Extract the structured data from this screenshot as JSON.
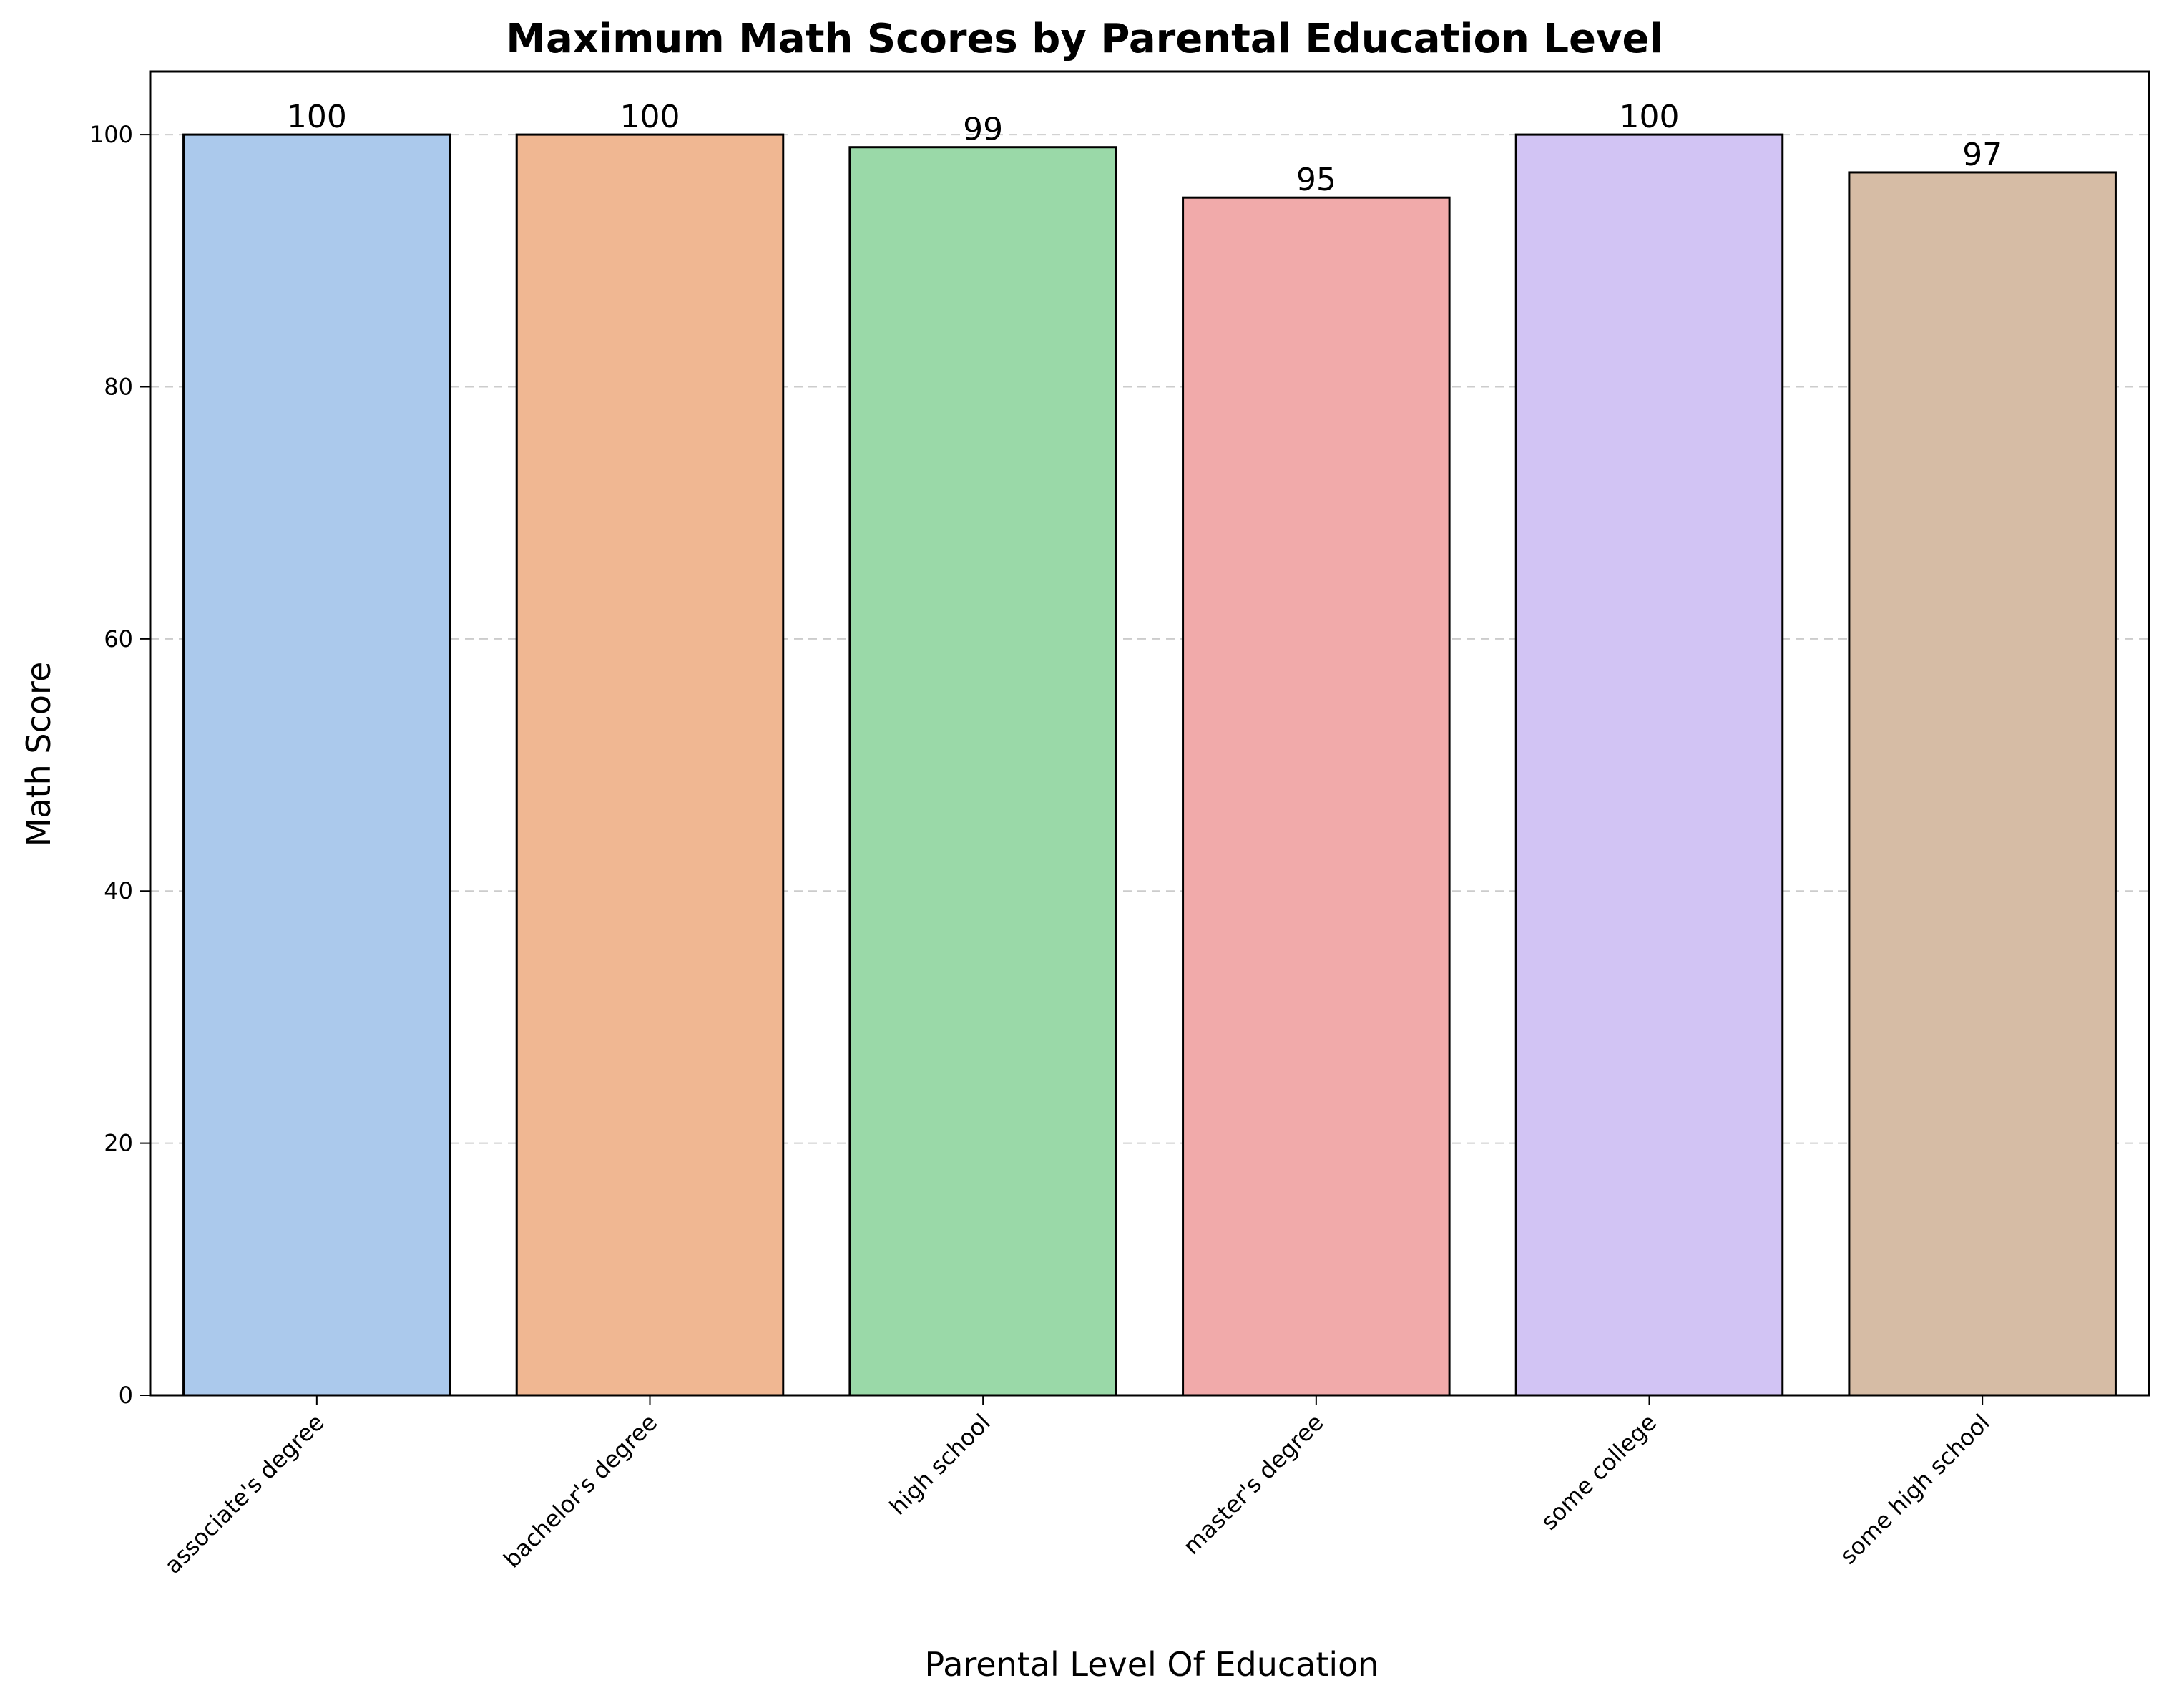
{
  "chart_data": {
    "type": "bar",
    "title": "Maximum Math Scores by Parental Education Level",
    "xlabel": "Parental Level Of Education",
    "ylabel": "Math Score",
    "categories": [
      "associate's degree",
      "bachelor's degree",
      "high school",
      "master's degree",
      "some college",
      "some high school"
    ],
    "values": [
      100,
      100,
      99,
      95,
      100,
      97
    ],
    "data_labels": [
      "100",
      "100",
      "99",
      "95",
      "100",
      "97"
    ],
    "colors": [
      "#abc9ec",
      "#f0b792",
      "#9ad9a8",
      "#f1aaaa",
      "#d2c4f4",
      "#d6bca5"
    ],
    "edge_color": "#000000",
    "ylim": [
      0,
      105
    ],
    "yticks": [
      0,
      20,
      40,
      60,
      80,
      100
    ],
    "ytick_labels": [
      "0",
      "20",
      "40",
      "60",
      "80",
      "100"
    ],
    "grid": "y-dashed",
    "grid_color": "#cccccc",
    "xtick_rotation_deg": 45
  }
}
